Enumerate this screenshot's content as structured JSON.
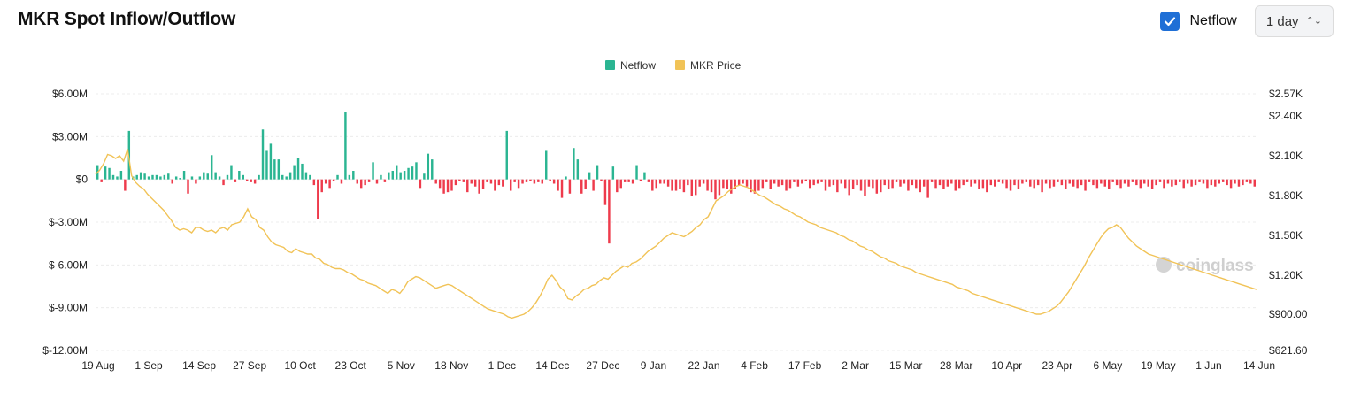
{
  "header": {
    "title": "MKR Spot Inflow/Outflow",
    "checkbox_label": "Netflow",
    "checkbox_checked": true,
    "interval_label": "1 day"
  },
  "watermark": "coinglass",
  "colors": {
    "netflow_positive": "#2bb592",
    "netflow_negative": "#ee3b4c",
    "price_line": "#f1c357",
    "checkbox": "#1f6fd6"
  },
  "chart_data": {
    "type": "bar",
    "title": "",
    "legend_position": "top-center",
    "legend": [
      {
        "name": "Netflow",
        "color": "#2bb592"
      },
      {
        "name": "MKR Price",
        "color": "#f1c357"
      }
    ],
    "x_tick_labels": [
      "19 Aug",
      "1 Sep",
      "14 Sep",
      "27 Sep",
      "10 Oct",
      "23 Oct",
      "5 Nov",
      "18 Nov",
      "1 Dec",
      "14 Dec",
      "27 Dec",
      "9 Jan",
      "22 Jan",
      "4 Feb",
      "17 Feb",
      "2 Mar",
      "15 Mar",
      "28 Mar",
      "10 Apr",
      "23 Apr",
      "6 May",
      "19 May",
      "1 Jun",
      "14 Jun"
    ],
    "y_left_ticks": [
      "$6.00M",
      "$3.00M",
      "$0",
      "$-3.00M",
      "$-6.00M",
      "$-9.00M",
      "$-12.00M"
    ],
    "y_right_ticks": [
      "$2.57K",
      "$2.40K",
      "$2.10K",
      "$1.80K",
      "$1.50K",
      "$1.20K",
      "$900.00",
      "$621.60"
    ],
    "y_left_range": [
      -12,
      6
    ],
    "y_left_unit": "$M",
    "y_right_ticks_values": [
      2570,
      2400,
      2100,
      1800,
      1500,
      1200,
      900,
      621.6
    ],
    "grid": true,
    "days": 300,
    "series": [
      {
        "name": "Netflow",
        "axis": "left",
        "unit": "$M",
        "values": [
          1.0,
          -0.2,
          0.9,
          0.8,
          0.3,
          0.2,
          0.6,
          -0.8,
          3.4,
          0.2,
          0.3,
          0.5,
          0.4,
          0.2,
          0.3,
          0.3,
          0.2,
          0.3,
          0.4,
          -0.3,
          0.2,
          0.1,
          0.6,
          -1.0,
          0.2,
          -0.3,
          0.2,
          0.5,
          0.4,
          1.7,
          0.5,
          0.2,
          -0.4,
          0.3,
          1.0,
          -0.2,
          0.6,
          0.3,
          -0.1,
          -0.2,
          -0.3,
          0.3,
          3.5,
          2.0,
          2.5,
          1.4,
          1.4,
          0.3,
          0.2,
          0.5,
          1.0,
          1.5,
          1.1,
          0.5,
          0.3,
          -0.4,
          -2.8,
          -0.9,
          -0.3,
          -0.6,
          -0.1,
          0.3,
          -0.3,
          4.7,
          0.3,
          0.6,
          -0.3,
          -0.6,
          -0.4,
          -0.2,
          1.2,
          -0.3,
          0.3,
          -0.2,
          0.5,
          0.6,
          1.0,
          0.5,
          0.6,
          0.8,
          0.9,
          1.2,
          -0.6,
          0.4,
          1.8,
          1.4,
          -0.3,
          -0.6,
          -1.0,
          -0.9,
          -0.8,
          -0.4,
          -0.1,
          -0.2,
          -0.9,
          -0.3,
          -0.5,
          -1.0,
          -0.7,
          -0.2,
          -0.3,
          -0.8,
          -0.4,
          -0.5,
          3.4,
          -0.8,
          -0.2,
          -0.6,
          -0.3,
          -0.2,
          -0.1,
          -0.3,
          -0.2,
          -0.3,
          2.0,
          -0.1,
          -0.3,
          -0.8,
          -1.3,
          0.2,
          -1.0,
          2.2,
          1.4,
          -1.0,
          -0.7,
          0.5,
          -0.8,
          1.0,
          -0.1,
          -1.8,
          -4.5,
          0.9,
          -0.9,
          -0.6,
          -0.2,
          -0.2,
          -0.3,
          1.0,
          -0.1,
          0.5,
          -0.2,
          -0.8,
          -0.6,
          -0.3,
          -0.3,
          -0.5,
          -0.8,
          -0.8,
          -0.7,
          -0.9,
          -0.4,
          -1.2,
          -1.1,
          -0.5,
          -0.3,
          -0.8,
          -0.9,
          -1.4,
          -1.1,
          -0.6,
          -0.7,
          -1.0,
          -0.7,
          -0.4,
          -0.3,
          -0.5,
          -0.9,
          -1.0,
          -0.8,
          -0.6,
          -0.2,
          -0.7,
          -0.3,
          -0.5,
          -0.4,
          -0.8,
          -0.6,
          -0.2,
          -0.5,
          -0.3,
          -0.1,
          -0.6,
          -0.4,
          -0.3,
          -0.2,
          -0.8,
          -0.5,
          -0.4,
          -0.9,
          -0.3,
          -0.6,
          -1.1,
          -0.7,
          -0.4,
          -0.8,
          -1.2,
          -0.5,
          -0.6,
          -1.0,
          -0.9,
          -0.4,
          -0.7,
          -0.6,
          -0.2,
          -0.5,
          -0.3,
          -0.8,
          -0.4,
          -0.6,
          -0.9,
          -0.5,
          -1.3,
          -0.2,
          -0.6,
          -0.4,
          -0.7,
          -0.5,
          -0.3,
          -0.8,
          -0.6,
          -0.4,
          -0.2,
          -0.5,
          -0.3,
          -0.7,
          -0.6,
          -0.9,
          -0.4,
          -0.5,
          -0.2,
          -0.3,
          -0.6,
          -0.8,
          -0.4,
          -0.7,
          -0.3,
          -0.2,
          -0.5,
          -0.6,
          -0.4,
          -0.9,
          -0.3,
          -0.6,
          -0.5,
          -0.2,
          -0.4,
          -0.7,
          -0.3,
          -0.5,
          -0.6,
          -0.4,
          -0.8,
          -0.2,
          -0.4,
          -0.6,
          -0.3,
          -0.5,
          -0.7,
          -0.2,
          -0.4,
          -0.6,
          -0.3,
          -0.5,
          -0.2,
          -0.4,
          -0.6,
          -0.3,
          -0.5,
          -0.7,
          -0.4,
          -0.2,
          -0.6,
          -0.3,
          -0.5,
          -0.4,
          -0.2,
          -0.6,
          -0.3,
          -0.5,
          -0.4,
          -0.2,
          -0.3,
          -0.6,
          -0.4,
          -0.5,
          -0.3,
          -0.2,
          -0.4,
          -0.6,
          -0.3,
          -0.5,
          -0.4,
          -0.2,
          -0.3,
          -0.5
        ]
      },
      {
        "name": "MKR Price",
        "axis": "right",
        "unit": "USD",
        "values": [
          1960,
          1990,
          2040,
          2110,
          2100,
          2080,
          2100,
          2060,
          2150,
          1950,
          1900,
          1870,
          1850,
          1810,
          1780,
          1750,
          1720,
          1690,
          1650,
          1610,
          1560,
          1540,
          1550,
          1540,
          1520,
          1560,
          1560,
          1540,
          1530,
          1540,
          1520,
          1550,
          1560,
          1540,
          1580,
          1590,
          1600,
          1640,
          1700,
          1640,
          1620,
          1560,
          1540,
          1490,
          1450,
          1430,
          1420,
          1410,
          1380,
          1370,
          1400,
          1380,
          1370,
          1360,
          1360,
          1330,
          1320,
          1290,
          1280,
          1260,
          1250,
          1250,
          1240,
          1220,
          1210,
          1190,
          1170,
          1160,
          1140,
          1130,
          1120,
          1100,
          1080,
          1060,
          1090,
          1080,
          1060,
          1100,
          1150,
          1170,
          1190,
          1180,
          1160,
          1140,
          1120,
          1100,
          1110,
          1120,
          1130,
          1120,
          1100,
          1080,
          1060,
          1040,
          1020,
          1000,
          980,
          960,
          940,
          930,
          920,
          910,
          900,
          880,
          870,
          880,
          890,
          900,
          920,
          950,
          990,
          1040,
          1100,
          1170,
          1200,
          1160,
          1110,
          1080,
          1020,
          1010,
          1040,
          1060,
          1090,
          1100,
          1120,
          1130,
          1160,
          1180,
          1170,
          1200,
          1230,
          1250,
          1270,
          1260,
          1290,
          1300,
          1320,
          1350,
          1380,
          1400,
          1420,
          1450,
          1480,
          1500,
          1520,
          1510,
          1500,
          1490,
          1510,
          1530,
          1560,
          1580,
          1620,
          1640,
          1700,
          1760,
          1780,
          1800,
          1830,
          1850,
          1870,
          1880,
          1870,
          1860,
          1840,
          1820,
          1800,
          1790,
          1770,
          1750,
          1730,
          1720,
          1700,
          1690,
          1670,
          1650,
          1640,
          1620,
          1600,
          1590,
          1580,
          1560,
          1550,
          1540,
          1530,
          1520,
          1500,
          1490,
          1470,
          1460,
          1440,
          1420,
          1410,
          1390,
          1380,
          1360,
          1340,
          1330,
          1310,
          1300,
          1290,
          1270,
          1260,
          1250,
          1240,
          1220,
          1210,
          1200,
          1190,
          1180,
          1170,
          1160,
          1150,
          1140,
          1130,
          1110,
          1100,
          1090,
          1080,
          1060,
          1050,
          1040,
          1030,
          1020,
          1010,
          1000,
          990,
          980,
          970,
          960,
          950,
          940,
          930,
          920,
          910,
          900,
          900,
          910,
          920,
          940,
          960,
          990,
          1030,
          1070,
          1120,
          1170,
          1220,
          1270,
          1330,
          1380,
          1430,
          1480,
          1520,
          1550,
          1560,
          1580,
          1560,
          1520,
          1480,
          1450,
          1420,
          1400,
          1380,
          1360,
          1350,
          1340,
          1330,
          1320,
          1310,
          1300,
          1290,
          1280,
          1270,
          1260,
          1250,
          1240,
          1230,
          1220,
          1210,
          1200,
          1190,
          1180,
          1170,
          1160,
          1150,
          1140,
          1130,
          1120,
          1110,
          1100,
          1090
        ]
      }
    ]
  }
}
